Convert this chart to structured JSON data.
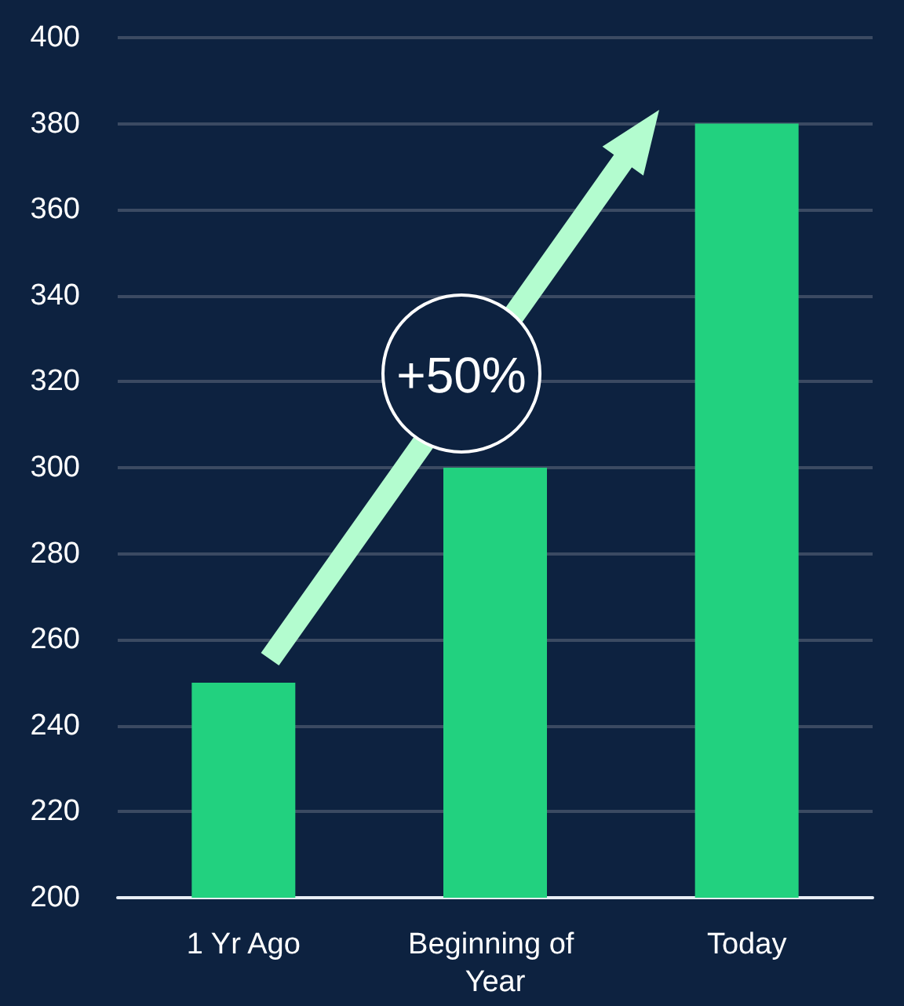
{
  "chart_data": {
    "type": "bar",
    "categories": [
      "1 Yr Ago",
      "Beginning of Year",
      "Today"
    ],
    "values": [
      250,
      300,
      380
    ],
    "color": "#22d17f",
    "ylim": [
      200,
      400
    ],
    "yticks": [
      200,
      220,
      240,
      260,
      280,
      300,
      320,
      340,
      360,
      380,
      400
    ],
    "grid": "y",
    "annotations": [
      "+50%"
    ]
  }
}
